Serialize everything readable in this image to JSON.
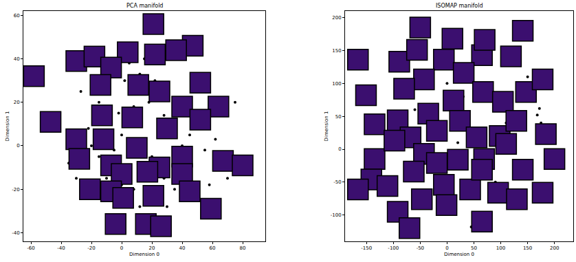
{
  "chart_data": [
    {
      "type": "scatter",
      "title": "PCA manifold",
      "x_label": "Dimension 0",
      "y_label": "Dimension 1",
      "xlim": [
        -65,
        95
      ],
      "ylim": [
        -44,
        62
      ],
      "xticks": [
        -60,
        -40,
        -20,
        0,
        20,
        40,
        60,
        80
      ],
      "yticks": [
        -40,
        -20,
        0,
        20,
        40,
        60
      ],
      "grid": false,
      "series": [
        {
          "type": "scatter",
          "marker": "circle",
          "color": "#000000",
          "x": [
            -28,
            -25,
            -20,
            -15,
            -10,
            -5,
            0,
            5,
            10,
            15,
            20,
            25,
            -30,
            -18,
            -10,
            0,
            8,
            18,
            28,
            35,
            -22,
            -12,
            -2,
            8,
            18,
            28,
            35,
            40,
            45,
            -35,
            -8,
            2,
            12,
            22,
            30,
            38,
            48,
            55,
            62,
            70,
            -24,
            -5,
            12,
            30,
            40,
            5,
            15,
            -15,
            42,
            -3,
            50,
            75,
            58,
            2,
            -27
          ],
          "y": [
            -10,
            -3,
            0,
            -5,
            2,
            -2,
            5,
            -5,
            10,
            0,
            -5,
            5,
            -15,
            -18,
            -15,
            -18,
            -20,
            -16,
            -15,
            -20,
            8,
            10,
            15,
            18,
            20,
            14,
            8,
            0,
            5,
            -8,
            25,
            30,
            33,
            30,
            25,
            22,
            15,
            -2,
            3,
            -15,
            -22,
            -28,
            -28,
            -28,
            -25,
            38,
            40,
            20,
            -2,
            -8,
            30,
            20,
            -18,
            -32,
            25
          ]
        },
        {
          "type": "thumbnail",
          "marker": "square",
          "color": "#3b0f6f",
          "x": [
            -58,
            21,
            47,
            -30,
            -18,
            4,
            22,
            36,
            -7,
            -14,
            11,
            25,
            52,
            40,
            64,
            -47,
            -13,
            7,
            30,
            52,
            -30,
            -12,
            10,
            25,
            40,
            -28,
            -7,
            0,
            17,
            40,
            67,
            80,
            -21,
            -7,
            1,
            21,
            45,
            59,
            -4,
            16,
            26
          ],
          "y": [
            32,
            56,
            46,
            39,
            41,
            43,
            42,
            44,
            36,
            28,
            28,
            25,
            29,
            18,
            18,
            11,
            14,
            13,
            8,
            12,
            3,
            3,
            -1,
            -10,
            -5,
            -6,
            -9,
            -13,
            -12,
            -13,
            -7,
            -9,
            -20,
            -21,
            -24,
            -23,
            -21,
            -29,
            -36,
            -36,
            -37
          ]
        }
      ]
    },
    {
      "type": "scatter",
      "title": "ISOMAP manifold",
      "x_label": "Dimension 0",
      "y_label": "Dimension 1",
      "xlim": [
        -190,
        235
      ],
      "ylim": [
        -140,
        210
      ],
      "xticks": [
        -150,
        -100,
        -50,
        0,
        50,
        100,
        150,
        200
      ],
      "yticks": [
        -100,
        -50,
        0,
        50,
        100,
        150,
        200
      ],
      "grid": false,
      "series": [
        {
          "type": "scatter",
          "marker": "circle",
          "color": "#000000",
          "x": [
            172,
            168,
            175,
            110,
            105,
            60,
            45,
            50,
            -10,
            20,
            -60,
            -30,
            130,
            90,
            -120,
            0,
            30,
            -80,
            150,
            160
          ],
          "y": [
            62,
            52,
            40,
            40,
            30,
            -110,
            -118,
            -105,
            -20,
            10,
            60,
            30,
            -40,
            -50,
            -20,
            100,
            80,
            -120,
            110,
            95
          ]
        },
        {
          "type": "thumbnail",
          "marker": "square",
          "color": "#3b0f6f",
          "x": [
            -166,
            -151,
            -89,
            -50,
            -56,
            -6,
            10,
            65,
            31,
            70,
            141,
            119,
            -43,
            -80,
            -135,
            -92,
            -68,
            -35,
            12,
            67,
            104,
            147,
            178,
            -135,
            -98,
            -43,
            -19,
            24,
            55,
            98,
            184,
            129,
            200,
            -141,
            -166,
            -111,
            -62,
            -19,
            20,
            69,
            110,
            141,
            178,
            -92,
            -70,
            -6,
            43,
            65,
            65,
            95,
            130,
            -47,
            -1
          ],
          "y": [
            136,
            82,
            133,
            185,
            151,
            136,
            168,
            143,
            116,
            166,
            180,
            141,
            106,
            92,
            38,
            44,
            18,
            54,
            74,
            87,
            72,
            87,
            106,
            -15,
            13,
            -7,
            28,
            43,
            18,
            20,
            23,
            43,
            -15,
            -46,
            -61,
            -56,
            -34,
            -21,
            -16,
            -15,
            8,
            -31,
            -66,
            -95,
            -120,
            -54,
            -61,
            -31,
            -110,
            -66,
            -76,
            -76,
            -85
          ]
        }
      ]
    }
  ]
}
